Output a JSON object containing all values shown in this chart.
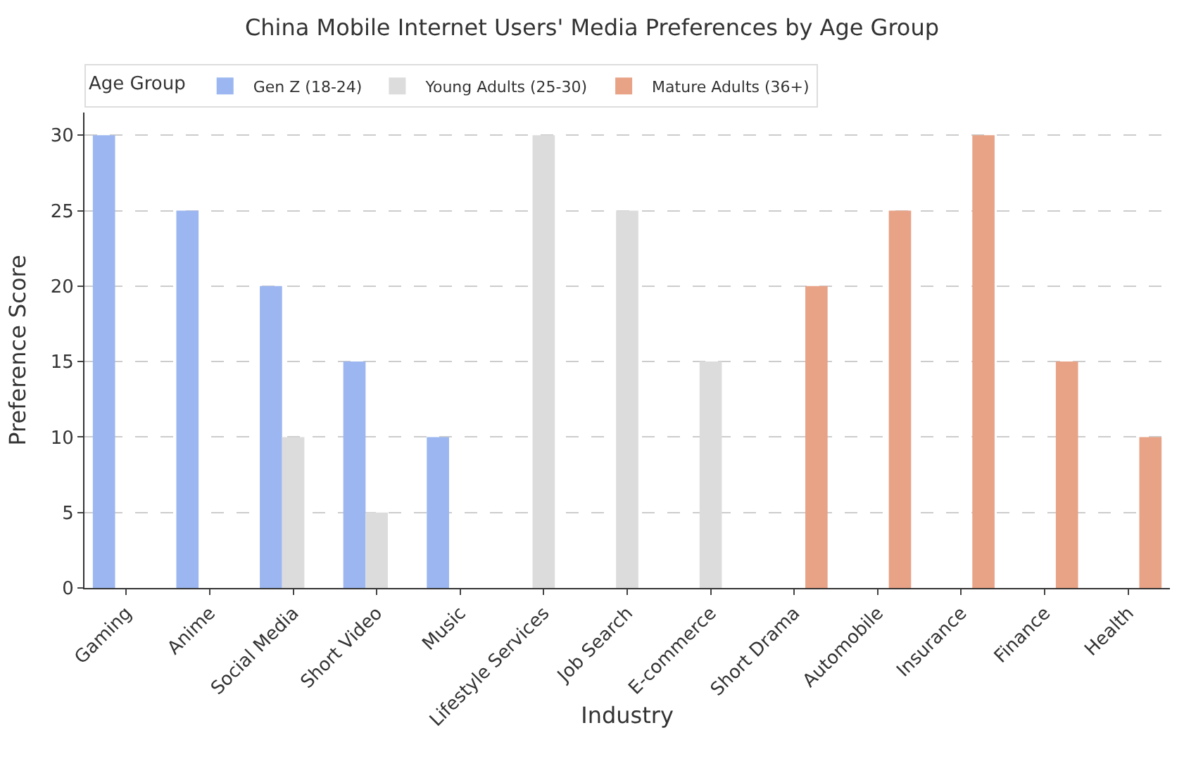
{
  "chart_data": {
    "type": "bar",
    "title": "China Mobile Internet Users' Media Preferences by Age Group",
    "xlabel": "Industry",
    "ylabel": "Preference Score",
    "legend_title": "Age Group",
    "categories": [
      "Gaming",
      "Anime",
      "Social Media",
      "Short Video",
      "Music",
      "Lifestyle Services",
      "Job Search",
      "E-commerce",
      "Short Drama",
      "Automobile",
      "Insurance",
      "Finance",
      "Health"
    ],
    "series": [
      {
        "name": "Gen Z (18-24)",
        "color": "#9bb6f0",
        "values": [
          30,
          25,
          20,
          15,
          10,
          null,
          null,
          null,
          null,
          null,
          null,
          null,
          null
        ]
      },
      {
        "name": "Young Adults (25-30)",
        "color": "#dcdcdc",
        "values": [
          null,
          null,
          10,
          5,
          null,
          30,
          25,
          15,
          null,
          null,
          null,
          null,
          null
        ]
      },
      {
        "name": "Mature Adults (36+)",
        "color": "#e8a286",
        "values": [
          null,
          null,
          null,
          null,
          null,
          null,
          null,
          null,
          20,
          25,
          30,
          15,
          10
        ]
      }
    ],
    "ylim": [
      0,
      31.5
    ],
    "yticks": [
      0,
      5,
      10,
      15,
      20,
      25,
      30
    ],
    "grid": "y",
    "legend": "top left"
  }
}
